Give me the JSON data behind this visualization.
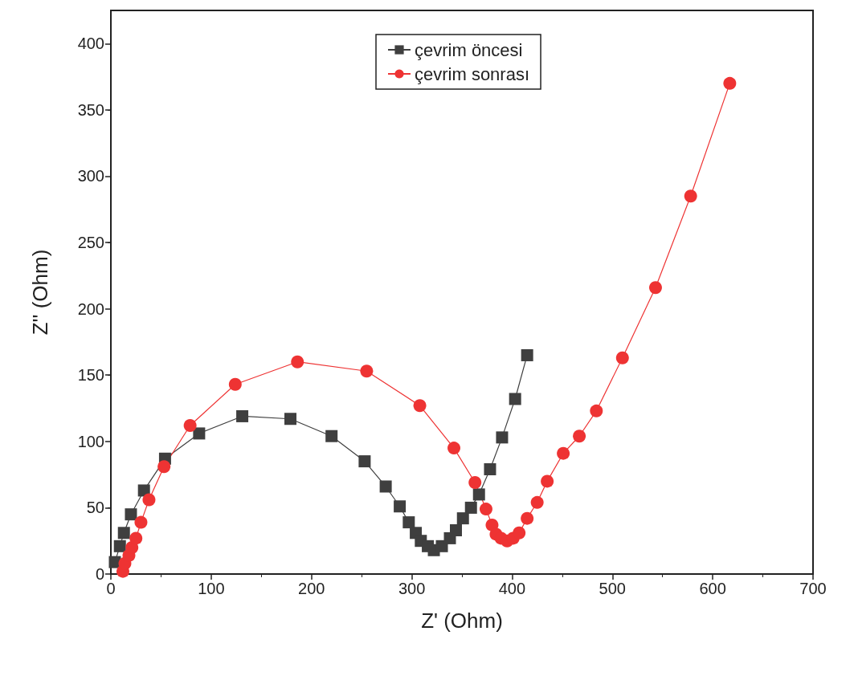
{
  "chart_data": {
    "type": "line",
    "xlabel": "Z' (Ohm)",
    "ylabel": "Z'' (Ohm)",
    "xlim": [
      0,
      700
    ],
    "ylim": [
      0,
      425
    ],
    "xticks": [
      0,
      100,
      200,
      300,
      400,
      500,
      600,
      700
    ],
    "yticks": [
      0,
      50,
      100,
      150,
      200,
      250,
      300,
      350,
      400
    ],
    "grid": false,
    "legend": "top",
    "series": [
      {
        "name": "çevrim öncesi",
        "color": "#3f3f3f",
        "marker": "square",
        "x": [
          4,
          9,
          13,
          20,
          33,
          54,
          88,
          131,
          179,
          220,
          253,
          274,
          288,
          297,
          304,
          309,
          316,
          322,
          330,
          338,
          344,
          351,
          359,
          367,
          378,
          390,
          403,
          415
        ],
        "values": [
          9,
          21,
          31,
          45,
          63,
          87,
          106,
          119,
          117,
          104,
          85,
          66,
          51,
          39,
          31,
          25,
          21,
          18,
          21,
          27,
          33,
          42,
          50,
          60,
          79,
          103,
          132,
          165
        ]
      },
      {
        "name": "çevrim sonrası",
        "color": "#ee3333",
        "marker": "circle",
        "x": [
          12,
          14,
          18,
          21,
          25,
          30,
          38,
          53,
          79,
          124,
          186,
          255,
          308,
          342,
          363,
          374,
          380,
          384,
          389,
          395,
          401,
          407,
          415,
          425,
          435,
          451,
          467,
          484,
          510,
          543,
          578,
          617
        ],
        "values": [
          2,
          8,
          14,
          20,
          27,
          39,
          56,
          81,
          112,
          143,
          160,
          153,
          127,
          95,
          69,
          49,
          37,
          30,
          27,
          25,
          27,
          31,
          42,
          54,
          70,
          91,
          104,
          123,
          163,
          216,
          285,
          370
        ]
      }
    ]
  }
}
